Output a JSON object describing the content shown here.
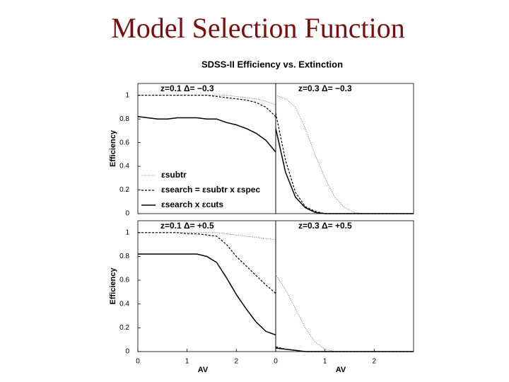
{
  "slide_title": "Model Selection Function",
  "figure_title": "SDSS-II Efficiency vs. Extinction",
  "chart_data": [
    {
      "type": "line",
      "annotation": "z=0.1  Δ= −0.3",
      "y_label": "Efficiency",
      "x": [
        0,
        0.2,
        0.4,
        0.6,
        0.8,
        1.0,
        1.2,
        1.4,
        1.6,
        1.8,
        2.0,
        2.2,
        2.4,
        2.6,
        2.8
      ],
      "xlim": [
        0,
        2.8
      ],
      "ylim": [
        0,
        1.1
      ],
      "yticks": [
        0,
        0.2,
        0.4,
        0.6,
        0.8,
        1
      ],
      "legend": "lower left",
      "series": [
        {
          "name": "εsubtr",
          "color": "#555555",
          "style": "dotted",
          "values": [
            1,
            1,
            1,
            1,
            1,
            1,
            1,
            1,
            1,
            1,
            0.99,
            0.98,
            0.97,
            0.95,
            0.92
          ]
        },
        {
          "name": "εsearch = εsubtr x εspec",
          "color": "#000000",
          "style": "dashed",
          "values": [
            1,
            1,
            1,
            1,
            1,
            1,
            1,
            1,
            0.99,
            0.98,
            0.97,
            0.96,
            0.94,
            0.9,
            0.82
          ]
        },
        {
          "name": "εsearch x εcuts",
          "color": "#000000",
          "style": "solid",
          "values": [
            0.82,
            0.81,
            0.8,
            0.8,
            0.81,
            0.81,
            0.81,
            0.8,
            0.8,
            0.77,
            0.75,
            0.72,
            0.68,
            0.62,
            0.52
          ]
        }
      ]
    },
    {
      "type": "line",
      "annotation": "z=0.3  Δ= −0.3",
      "x": [
        0,
        0.2,
        0.4,
        0.6,
        0.8,
        1.0,
        1.2,
        1.4,
        1.6,
        1.8,
        2.0,
        2.2,
        2.4,
        2.6,
        2.8
      ],
      "xlim": [
        0,
        2.8
      ],
      "ylim": [
        0,
        1.1
      ],
      "series": [
        {
          "color": "#555555",
          "style": "dotted",
          "values": [
            1,
            0.97,
            0.9,
            0.72,
            0.5,
            0.3,
            0.14,
            0.05,
            0.01,
            0,
            0,
            0,
            0,
            0,
            0
          ]
        },
        {
          "color": "#000000",
          "style": "dashed",
          "values": [
            0.85,
            0.45,
            0.18,
            0.06,
            0.02,
            0,
            0,
            0,
            0,
            0,
            0,
            0,
            0,
            0,
            0
          ]
        },
        {
          "color": "#000000",
          "style": "solid",
          "values": [
            0.72,
            0.35,
            0.14,
            0.05,
            0.01,
            0,
            0,
            0,
            0,
            0,
            0,
            0,
            0,
            0,
            0
          ]
        }
      ]
    },
    {
      "type": "line",
      "annotation": "z=0.1  Δ= +0.5",
      "y_label": "Efficiency",
      "x_label": "AV",
      "x": [
        0,
        0.2,
        0.4,
        0.6,
        0.8,
        1.0,
        1.2,
        1.4,
        1.6,
        1.8,
        2.0,
        2.2,
        2.4,
        2.6,
        2.8
      ],
      "xlim": [
        0,
        2.8
      ],
      "xticks": [
        0,
        1,
        2
      ],
      "ylim": [
        0,
        1.1
      ],
      "yticks": [
        0,
        0.2,
        0.4,
        0.6,
        0.8,
        1
      ],
      "series": [
        {
          "color": "#555555",
          "style": "dotted",
          "values": [
            1,
            1,
            1,
            1,
            1,
            1,
            1,
            1,
            1,
            0.99,
            0.98,
            0.97,
            0.96,
            0.95,
            0.94
          ]
        },
        {
          "color": "#000000",
          "style": "dashed",
          "values": [
            1,
            1,
            1,
            1,
            1,
            0.99,
            0.99,
            0.98,
            0.97,
            0.9,
            0.8,
            0.72,
            0.64,
            0.56,
            0.49
          ]
        },
        {
          "color": "#000000",
          "style": "solid",
          "values": [
            0.82,
            0.82,
            0.82,
            0.82,
            0.82,
            0.82,
            0.82,
            0.8,
            0.75,
            0.62,
            0.48,
            0.36,
            0.25,
            0.17,
            0.14
          ]
        }
      ]
    },
    {
      "type": "line",
      "annotation": "z=0.3  Δ= +0.5",
      "x_label": "AV",
      "x": [
        0,
        0.2,
        0.4,
        0.6,
        0.8,
        1.0,
        1.2,
        1.4,
        1.6,
        1.8,
        2.0,
        2.2,
        2.4,
        2.6,
        2.8
      ],
      "xlim": [
        0,
        2.8
      ],
      "xticks": [
        0,
        1,
        2
      ],
      "ylim": [
        0,
        1.1
      ],
      "series": [
        {
          "color": "#555555",
          "style": "dotted",
          "values": [
            0.65,
            0.52,
            0.36,
            0.2,
            0.08,
            0.02,
            0,
            0,
            0,
            0,
            0,
            0,
            0,
            0,
            0
          ]
        },
        {
          "color": "#000000",
          "style": "dashed",
          "values": [
            0.04,
            0.02,
            0.01,
            0,
            0,
            0,
            0,
            0,
            0,
            0,
            0,
            0,
            0,
            0,
            0
          ]
        },
        {
          "color": "#000000",
          "style": "solid",
          "values": [
            0.03,
            0.02,
            0.01,
            0,
            0,
            0,
            0,
            0,
            0,
            0,
            0,
            0,
            0,
            0,
            0
          ]
        }
      ]
    }
  ]
}
